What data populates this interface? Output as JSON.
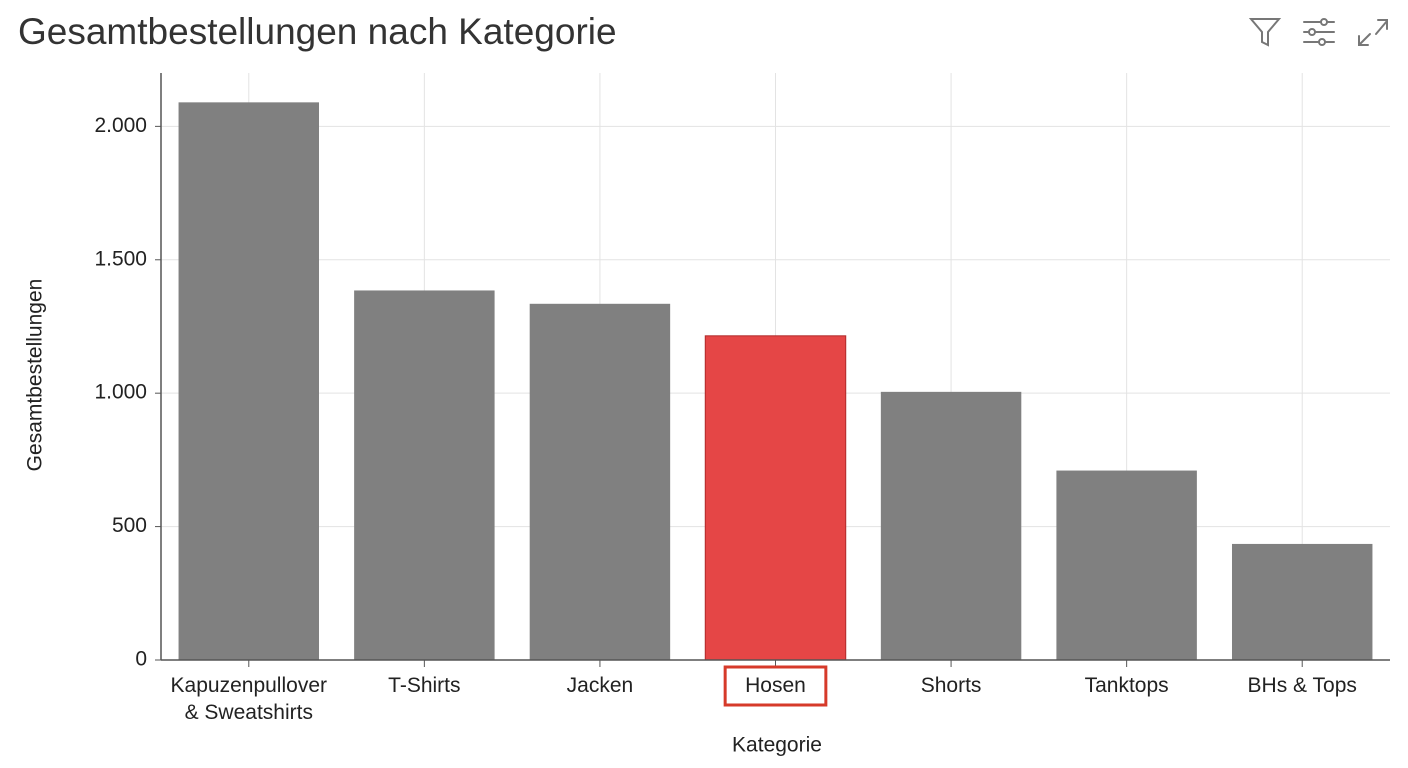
{
  "chart_data": {
    "type": "bar",
    "title": "Gesamtbestellungen nach Kategorie",
    "x_label": "Kategorie",
    "y_label": "Gesamtbestellungen",
    "categories": [
      "Kapuzenpullover\n& Sweatshirts",
      "T-Shirts",
      "Jacken",
      "Hosen",
      "Shorts",
      "Tanktops",
      "BHs & Tops"
    ],
    "values": [
      2090,
      1385,
      1335,
      1215,
      1005,
      710,
      435
    ],
    "color": "#808080",
    "highlight_color": "#e54646",
    "highlight_index": 3,
    "ylim": [
      0,
      2200
    ],
    "yticks": [
      0,
      500,
      {
        "value": 1000,
        "label": "1.000"
      },
      {
        "value": 1500,
        "label": "1.500"
      },
      {
        "value": 2000,
        "label": "2.000"
      }
    ],
    "grid": true
  }
}
